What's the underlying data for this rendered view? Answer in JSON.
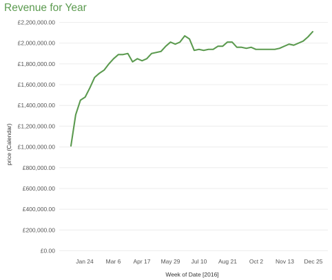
{
  "chart_data": {
    "type": "line",
    "title": "Revenue for Year",
    "xlabel": "Week of Date [2016]",
    "ylabel": "price (Calendar)",
    "ylim": [
      0,
      2200000
    ],
    "yticks": [
      0,
      200000,
      400000,
      600000,
      800000,
      1000000,
      1200000,
      1400000,
      1600000,
      1800000,
      2000000,
      2200000
    ],
    "ytick_labels": [
      "£0.00",
      "£200,000.00",
      "£400,000.00",
      "£600,000.00",
      "£800,000.00",
      "£1,000,000.00",
      "£1,200,000.00",
      "£1,400,000.00",
      "£1,600,000.00",
      "£1,800,000.00",
      "£2,000,000.00",
      "£2,200,000.00"
    ],
    "xticks": [
      "Jan 24",
      "Mar 6",
      "Apr 17",
      "May 29",
      "Jul 10",
      "Aug 21",
      "Oct 2",
      "Nov 13",
      "Dec 25"
    ],
    "grid": true,
    "line_color": "#5b9a4f",
    "title_color": "#5b9a4f",
    "series": [
      {
        "values": [
          1010000,
          1310000,
          1450000,
          1480000,
          1570000,
          1670000,
          1710000,
          1740000,
          1800000,
          1850000,
          1890000,
          1890000,
          1900000,
          1820000,
          1850000,
          1830000,
          1850000,
          1900000,
          1910000,
          1920000,
          1970000,
          2010000,
          1990000,
          2010000,
          2070000,
          2040000,
          1930000,
          1940000,
          1930000,
          1940000,
          1940000,
          1970000,
          1970000,
          2010000,
          2010000,
          1960000,
          1960000,
          1950000,
          1960000,
          1940000,
          1940000,
          1940000,
          1940000,
          1940000,
          1950000,
          1970000,
          1990000,
          1980000,
          2000000,
          2020000,
          2060000,
          2110000
        ]
      }
    ]
  }
}
